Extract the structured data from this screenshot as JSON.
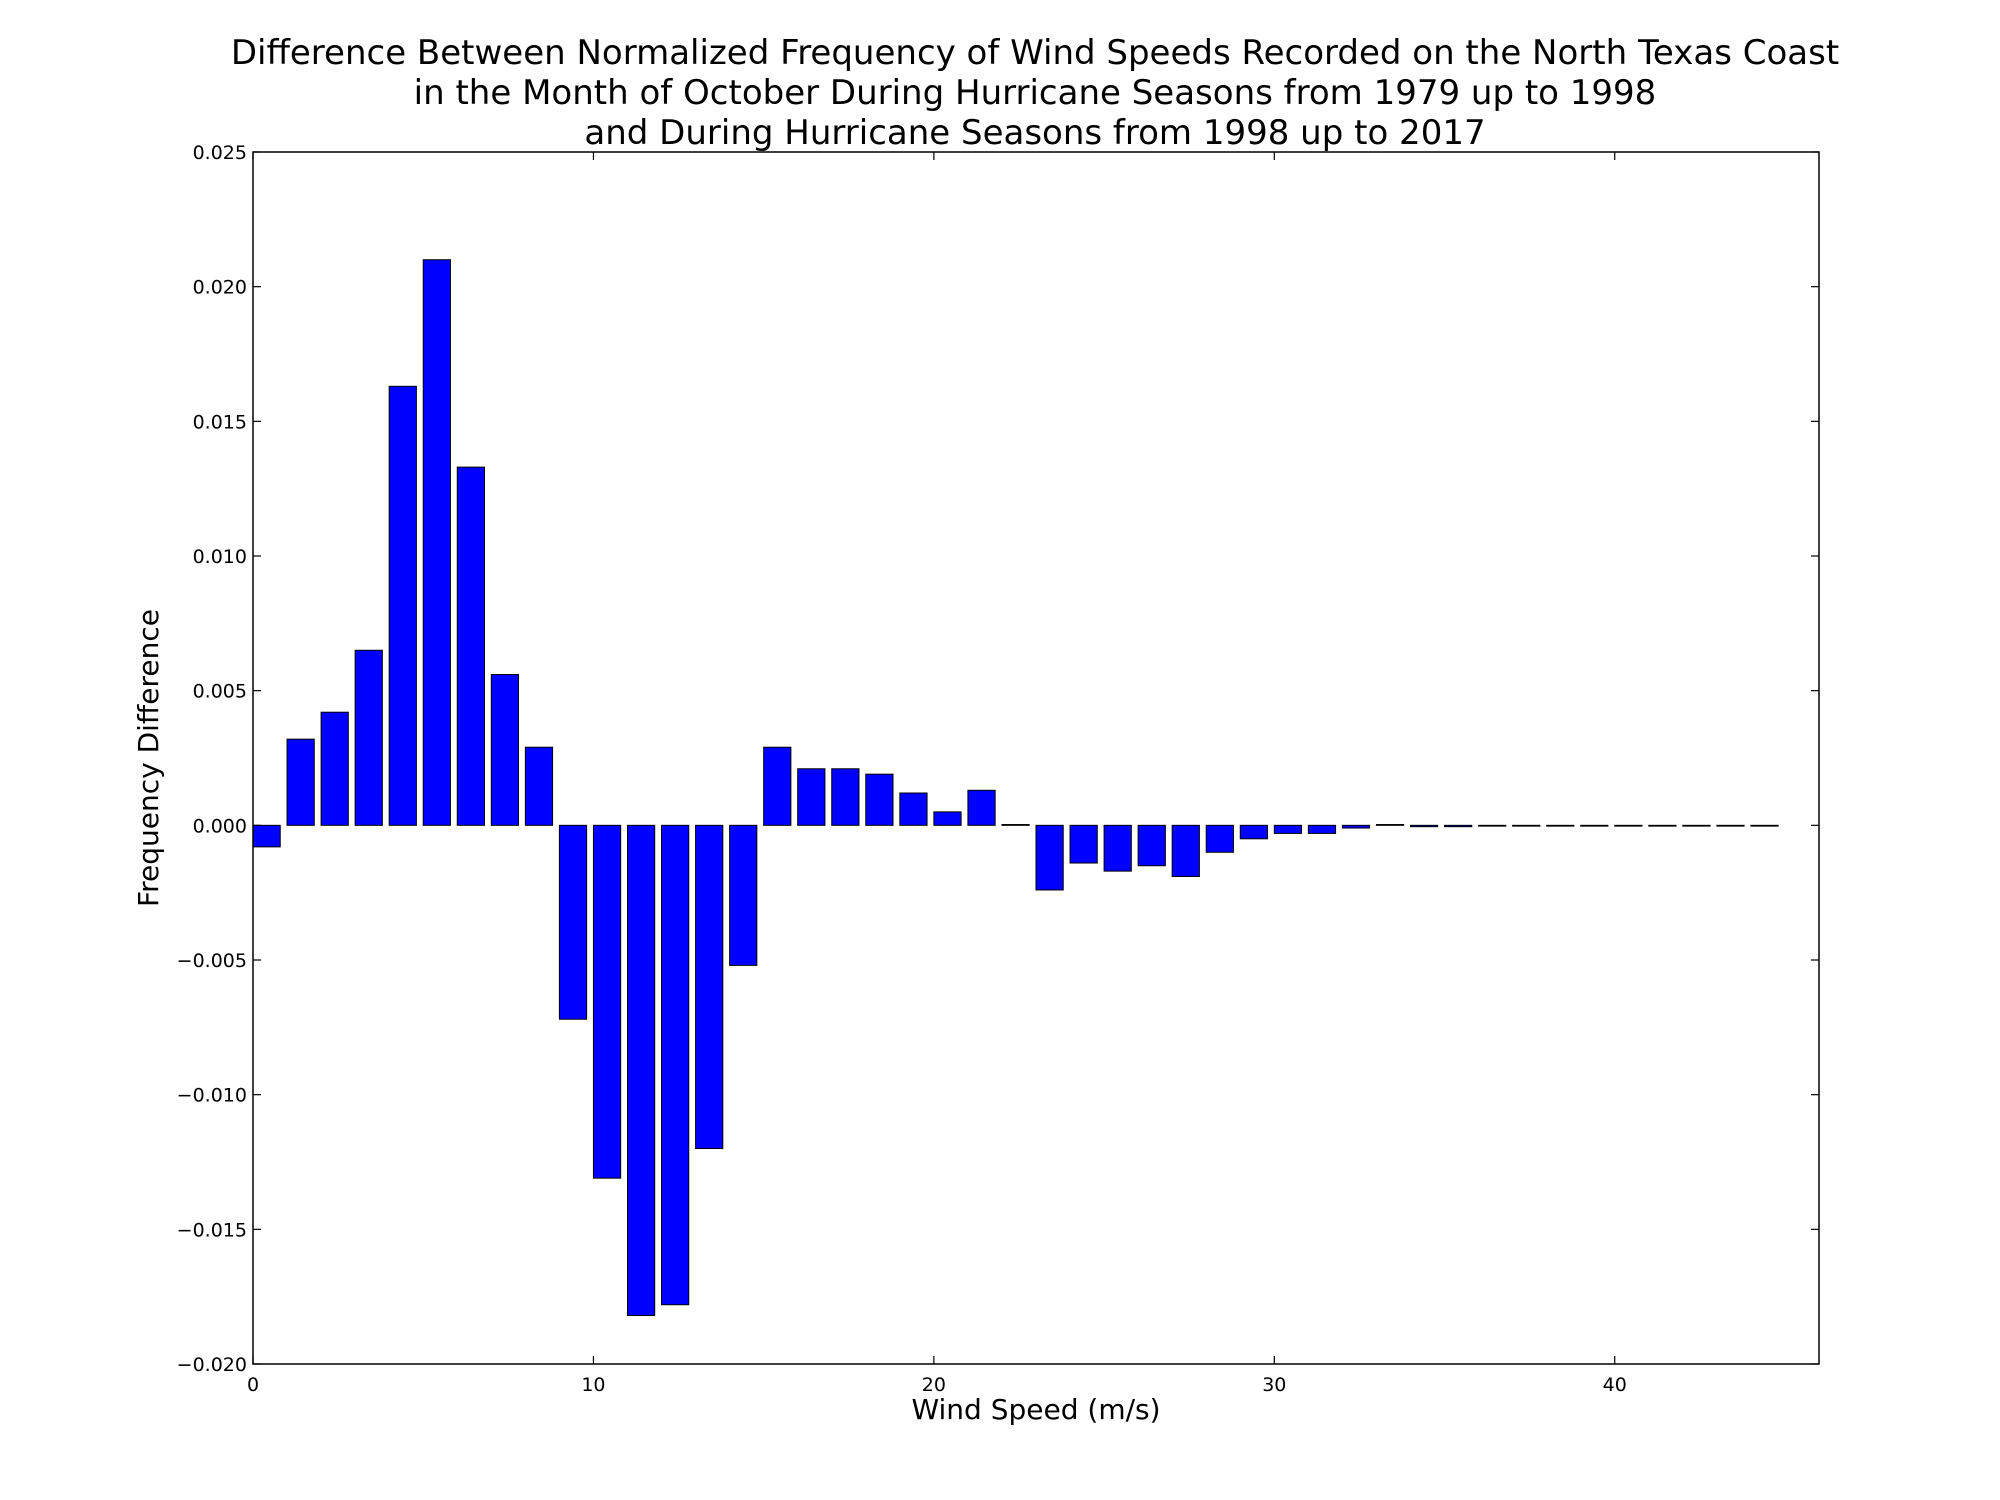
{
  "chart_data": {
    "type": "bar",
    "title": [
      "Difference Between Normalized Frequency of Wind Speeds Recorded on the North Texas Coast",
      "in the Month of October During Hurricane Seasons from 1979 up to 1998",
      "and During Hurricane Seasons from 1998 up to 2017"
    ],
    "xlabel": "Wind Speed (m/s)",
    "ylabel": "Frequency Difference",
    "xlim": [
      0,
      46
    ],
    "ylim": [
      -0.02,
      0.025
    ],
    "bar_width": 0.8,
    "bar_color": "#0000ff",
    "edge_color": "#000000",
    "grid": false,
    "xticks": [
      0,
      10,
      20,
      30,
      40
    ],
    "xtick_labels": [
      "0",
      "10",
      "20",
      "30",
      "40"
    ],
    "yticks": [
      -0.02,
      -0.015,
      -0.01,
      -0.005,
      0.0,
      0.005,
      0.01,
      0.015,
      0.02,
      0.025
    ],
    "ytick_labels": [
      "−0.020",
      "−0.015",
      "−0.010",
      "−0.005",
      "0.000",
      "0.005",
      "0.010",
      "0.015",
      "0.020",
      "0.025"
    ],
    "x": [
      0,
      1,
      2,
      3,
      4,
      5,
      6,
      7,
      8,
      9,
      10,
      11,
      12,
      13,
      14,
      15,
      16,
      17,
      18,
      19,
      20,
      21,
      22,
      23,
      24,
      25,
      26,
      27,
      28,
      29,
      30,
      31,
      32,
      33,
      34,
      35,
      36,
      37,
      38,
      39,
      40,
      41,
      42,
      43,
      44
    ],
    "values": [
      -0.0008,
      0.0032,
      0.0042,
      0.0065,
      0.0163,
      0.021,
      0.0133,
      0.0056,
      0.0029,
      -0.0072,
      -0.0131,
      -0.0182,
      -0.0178,
      -0.012,
      -0.0052,
      0.0029,
      0.0021,
      0.0021,
      0.0019,
      0.0012,
      0.0005,
      0.0013,
      3e-05,
      -0.0024,
      -0.0014,
      -0.0017,
      -0.0015,
      -0.0019,
      -0.001,
      -0.0005,
      -0.0003,
      -0.0003,
      -0.0001,
      3e-05,
      -5e-05,
      -5e-05,
      0.0,
      0.0,
      0.0,
      0.0,
      0.0,
      0.0,
      0.0,
      0.0,
      0.0
    ]
  }
}
